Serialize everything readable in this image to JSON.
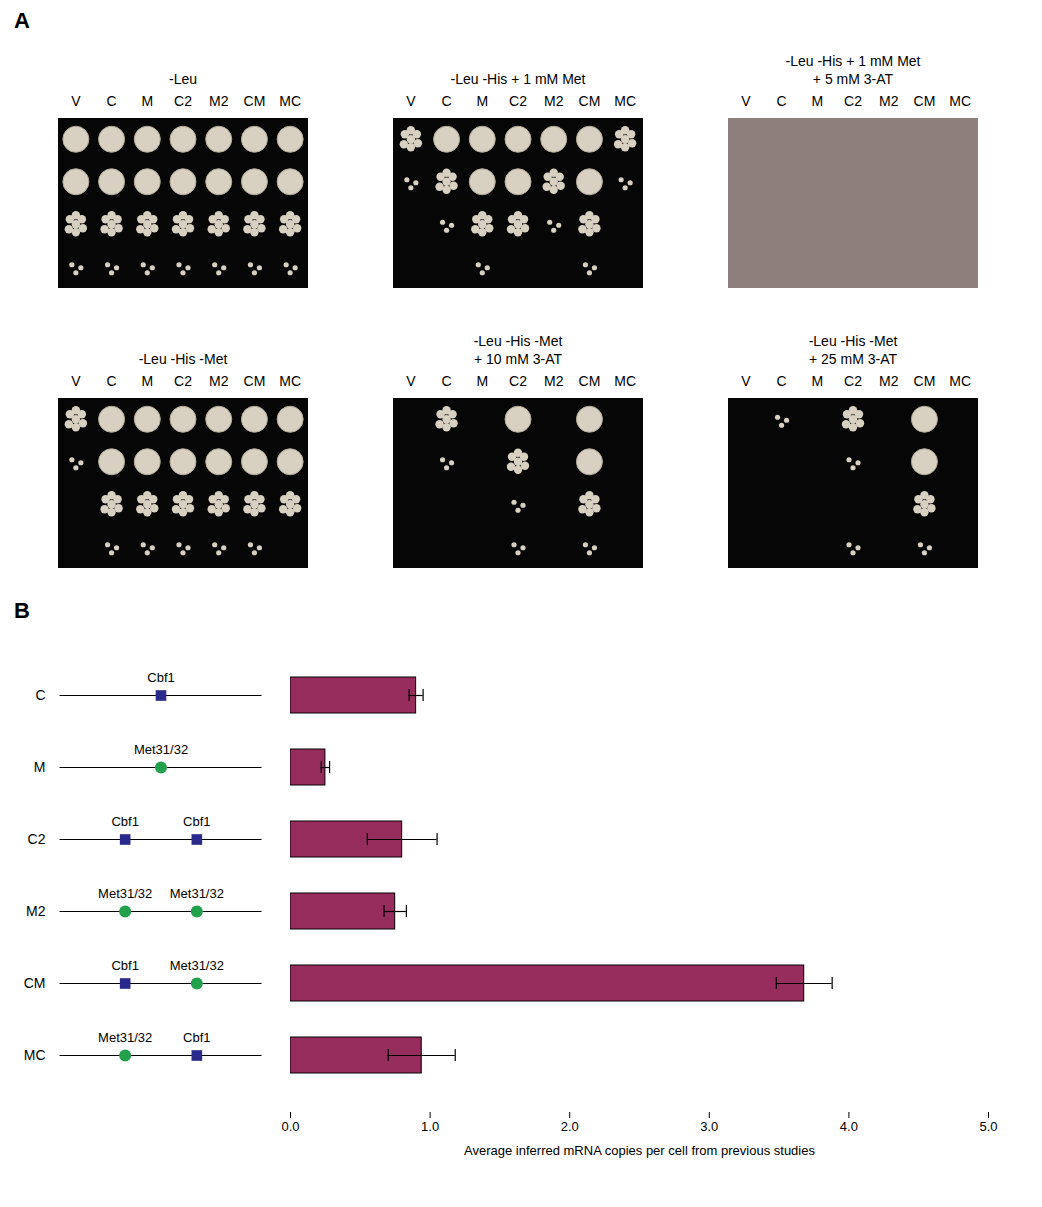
{
  "panel_labels": [
    "A",
    "B"
  ],
  "panel_a": {
    "strains": [
      "V",
      "C",
      "M",
      "C2",
      "M2",
      "CM",
      "MC"
    ],
    "plates": [
      {
        "title": "-Leu",
        "color": "#060606",
        "growth": [
          [
            3,
            3,
            3,
            3,
            3,
            3,
            3
          ],
          [
            3,
            3,
            3,
            3,
            3,
            3,
            3
          ],
          [
            2,
            2,
            2,
            2,
            2,
            2,
            2
          ],
          [
            1,
            1,
            1,
            1,
            1,
            1,
            1
          ]
        ]
      },
      {
        "title": "-Leu -His + 1 mM Met",
        "color": "#060606",
        "growth": [
          [
            2,
            3,
            3,
            3,
            3,
            3,
            2
          ],
          [
            1,
            2,
            3,
            3,
            2,
            3,
            1
          ],
          [
            0,
            1,
            2,
            2,
            1,
            2,
            0
          ],
          [
            0,
            0,
            1,
            0,
            0,
            1,
            0
          ]
        ]
      },
      {
        "title": "-Leu -His + 1 mM Met + 5 mM 3-AT",
        "color": "#8c7f7c",
        "growth": [
          [
            0,
            0,
            0,
            0,
            0,
            0,
            0
          ],
          [
            0,
            0,
            0,
            0,
            0,
            0,
            0
          ],
          [
            0,
            0,
            0,
            0,
            0,
            0,
            0
          ],
          [
            0,
            0,
            0,
            0,
            0,
            0,
            0
          ]
        ]
      },
      {
        "title": "-Leu -His -Met",
        "color": "#060606",
        "growth": [
          [
            2,
            3,
            3,
            3,
            3,
            3,
            3
          ],
          [
            1,
            3,
            3,
            3,
            3,
            3,
            3
          ],
          [
            0,
            2,
            2,
            2,
            2,
            2,
            2
          ],
          [
            0,
            1,
            1,
            1,
            1,
            1,
            0
          ]
        ]
      },
      {
        "title": "-Leu -His -Met + 10 mM 3-AT",
        "color": "#060606",
        "growth": [
          [
            0,
            2,
            0,
            3,
            0,
            3,
            0
          ],
          [
            0,
            1,
            0,
            2,
            0,
            3,
            0
          ],
          [
            0,
            0,
            0,
            1,
            0,
            2,
            0
          ],
          [
            0,
            0,
            0,
            1,
            0,
            1,
            0
          ]
        ]
      },
      {
        "title": "-Leu -His -Met + 25 mM 3-AT",
        "color": "#060606",
        "growth": [
          [
            0,
            1,
            0,
            2,
            0,
            3,
            0
          ],
          [
            0,
            0,
            0,
            1,
            0,
            3,
            0
          ],
          [
            0,
            0,
            0,
            0,
            0,
            2,
            0
          ],
          [
            0,
            0,
            0,
            1,
            0,
            1,
            0
          ]
        ]
      }
    ]
  },
  "chart_data": {
    "type": "bar",
    "orientation": "horizontal",
    "categories": [
      "C",
      "M",
      "C2",
      "M2",
      "CM",
      "MC"
    ],
    "values": [
      0.9,
      0.25,
      0.8,
      0.75,
      3.68,
      0.94
    ],
    "errors": [
      0.05,
      0.03,
      0.25,
      0.08,
      0.2,
      0.24
    ],
    "color": "#962d5d",
    "xlabel": "Average inferred mRNA copies per cell from previous studies",
    "xlim": [
      0,
      5
    ],
    "xticks": [
      0,
      1,
      2,
      3,
      4,
      5
    ],
    "sites": {
      "Cbf1": {
        "color": "#2a2a8c",
        "marker": "square"
      },
      "Met31/32": {
        "color": "#22a04b",
        "marker": "circle"
      }
    },
    "constructs": [
      [
        "Cbf1"
      ],
      [
        "Met31/32"
      ],
      [
        "Cbf1",
        "Cbf1"
      ],
      [
        "Met31/32",
        "Met31/32"
      ],
      [
        "Cbf1",
        "Met31/32"
      ],
      [
        "Met31/32",
        "Cbf1"
      ]
    ]
  }
}
